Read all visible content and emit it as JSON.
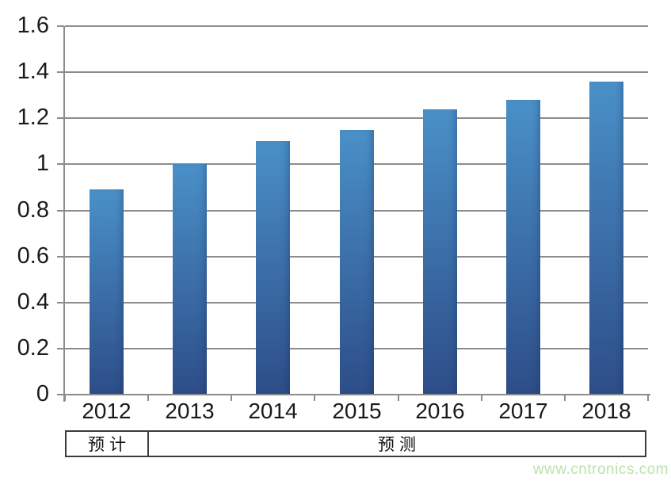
{
  "chart_data": {
    "type": "bar",
    "categories": [
      "2012",
      "2013",
      "2014",
      "2015",
      "2016",
      "2017",
      "2018"
    ],
    "values": [
      0.89,
      1.0,
      1.1,
      1.15,
      1.24,
      1.28,
      1.36
    ],
    "title": "",
    "xlabel": "",
    "ylabel": "",
    "ylim": [
      0,
      1.6
    ],
    "ytick_step": 0.2,
    "ytick_labels": [
      "0",
      "0.2",
      "0.4",
      "0.6",
      "0.8",
      "1",
      "1.2",
      "1.4",
      "1.6"
    ],
    "grid": true,
    "legend": "none",
    "bar_color_top": "#4A90C8",
    "bar_color_bottom": "#2D4D88",
    "gridline_color": "#8C8C8C"
  },
  "annotation_row": {
    "cells": [
      {
        "label": "预计",
        "spans_categories": "2012"
      },
      {
        "label": "预测",
        "spans_categories": "2013-2018"
      }
    ]
  },
  "watermark": {
    "text": "www.cntronics.com",
    "color": "#BCE2AC"
  }
}
